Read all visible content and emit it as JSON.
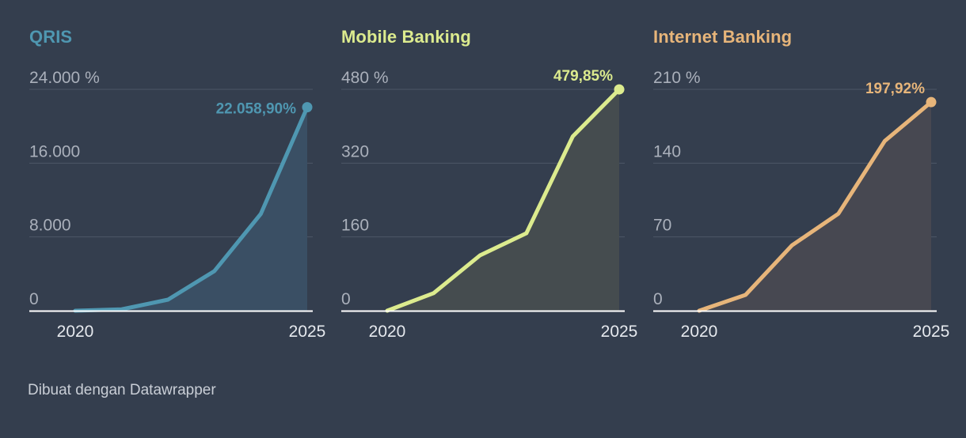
{
  "credit": "Dibuat dengan Datawrapper",
  "chart_data": [
    {
      "type": "area",
      "title": "QRIS",
      "color": "#4f97b1",
      "fill": "#3a4f64",
      "x": [
        2020,
        2021,
        2022,
        2023,
        2024,
        2025
      ],
      "values": [
        0,
        150,
        1200,
        4300,
        10500,
        22058.9
      ],
      "end_label": "22.058,90%",
      "ylim": [
        0,
        24000
      ],
      "yticks": [
        0,
        8000,
        16000,
        24000
      ],
      "ytick_labels": [
        "0",
        "8.000",
        "16.000",
        "24.000 %"
      ],
      "xticks": [
        2020,
        2025
      ],
      "xtick_labels": [
        "2020",
        "2025"
      ]
    },
    {
      "type": "area",
      "title": "Mobile Banking",
      "color": "#dceb8e",
      "fill": "#454c4f",
      "x": [
        2020,
        2021,
        2022,
        2023,
        2024,
        2025
      ],
      "values": [
        0,
        38,
        120,
        168,
        378,
        479.85
      ],
      "end_label": "479,85%",
      "ylim": [
        0,
        480
      ],
      "yticks": [
        0,
        160,
        320,
        480
      ],
      "ytick_labels": [
        "0",
        "160",
        "320",
        "480 %"
      ],
      "xticks": [
        2020,
        2025
      ],
      "xtick_labels": [
        "2020",
        "2025"
      ]
    },
    {
      "type": "area",
      "title": "Internet Banking",
      "color": "#e7b57a",
      "fill": "#474851",
      "x": [
        2020,
        2021,
        2022,
        2023,
        2024,
        2025
      ],
      "values": [
        0,
        15,
        62,
        92,
        161,
        197.92
      ],
      "end_label": "197,92%",
      "ylim": [
        0,
        210
      ],
      "yticks": [
        0,
        70,
        140,
        210
      ],
      "ytick_labels": [
        "0",
        "70",
        "140",
        "210 %"
      ],
      "xticks": [
        2020,
        2025
      ],
      "xtick_labels": [
        "2020",
        "2025"
      ]
    }
  ]
}
